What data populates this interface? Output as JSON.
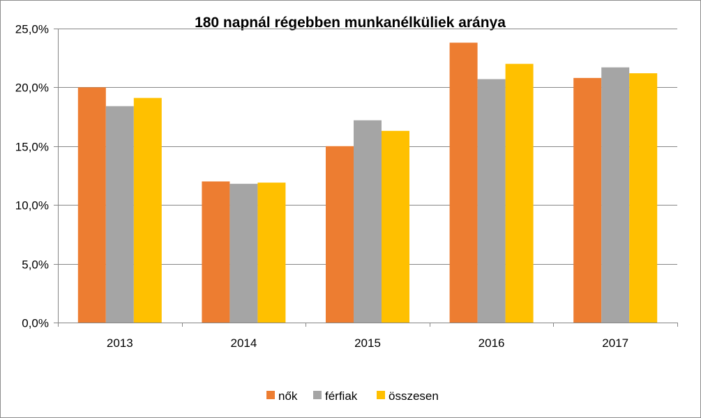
{
  "chart_data": {
    "type": "bar",
    "title": "180 napnál régebben munkanélküliek aránya",
    "categories": [
      "2013",
      "2014",
      "2015",
      "2016",
      "2017"
    ],
    "series": [
      {
        "name": "nők",
        "color": "#ED7D31",
        "values": [
          20.0,
          12.0,
          15.0,
          23.8,
          20.8
        ]
      },
      {
        "name": "férfiak",
        "color": "#A5A5A5",
        "values": [
          18.4,
          11.8,
          17.2,
          20.7,
          21.7
        ]
      },
      {
        "name": "összesen",
        "color": "#FFC000",
        "values": [
          19.1,
          11.9,
          16.3,
          22.0,
          21.2
        ]
      }
    ],
    "ylim": [
      0,
      25
    ],
    "yticks": [
      0,
      5,
      10,
      15,
      20,
      25
    ],
    "ytick_labels": [
      "0,0%",
      "5,0%",
      "10,0%",
      "15,0%",
      "20,0%",
      "25,0%"
    ],
    "xlabel": "",
    "ylabel": "",
    "grid": true,
    "legend_position": "bottom"
  }
}
